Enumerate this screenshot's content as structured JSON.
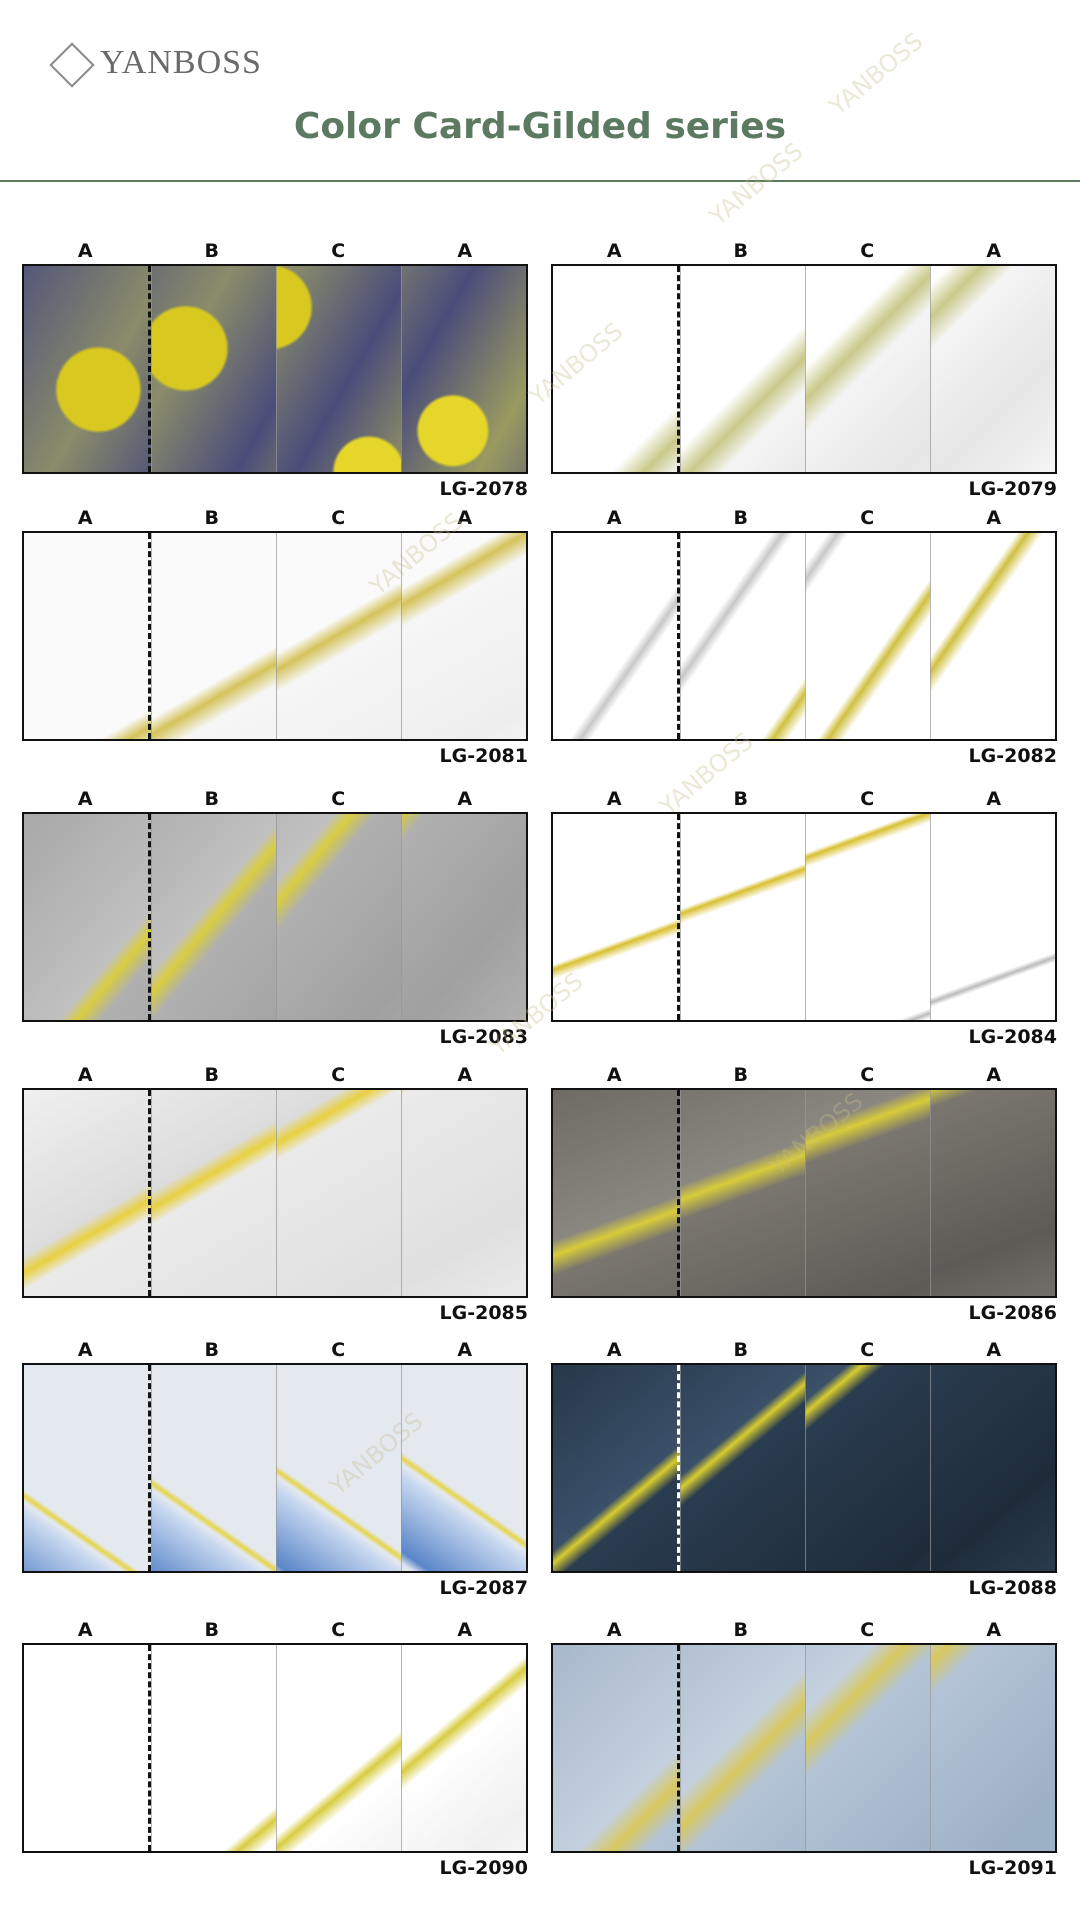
{
  "header": {
    "logo": "YANBOSS",
    "title": "Color Card-Gilded series"
  },
  "watermark": "YANBOSS",
  "cards": [
    {
      "code": "LG-2078",
      "panels": [
        "A",
        "B",
        "C",
        "A"
      ]
    },
    {
      "code": "LG-2079",
      "panels": [
        "A",
        "B",
        "C",
        "A"
      ]
    },
    {
      "code": "LG-2081",
      "panels": [
        "A",
        "B",
        "C",
        "A"
      ]
    },
    {
      "code": "LG-2082",
      "panels": [
        "A",
        "B",
        "C",
        "A"
      ]
    },
    {
      "code": "LG-2083",
      "panels": [
        "A",
        "B",
        "C",
        "A"
      ]
    },
    {
      "code": "LG-2084",
      "panels": [
        "A",
        "B",
        "C",
        "A"
      ]
    },
    {
      "code": "LG-2085",
      "panels": [
        "A",
        "B",
        "C",
        "A"
      ]
    },
    {
      "code": "LG-2086",
      "panels": [
        "A",
        "B",
        "C",
        "A"
      ]
    },
    {
      "code": "LG-2087",
      "panels": [
        "A",
        "B",
        "C",
        "A"
      ]
    },
    {
      "code": "LG-2088",
      "panels": [
        "A",
        "B",
        "C",
        "A"
      ]
    },
    {
      "code": "LG-2090",
      "panels": [
        "A",
        "B",
        "C",
        "A"
      ]
    },
    {
      "code": "LG-2091",
      "panels": [
        "A",
        "B",
        "C",
        "A"
      ]
    }
  ]
}
